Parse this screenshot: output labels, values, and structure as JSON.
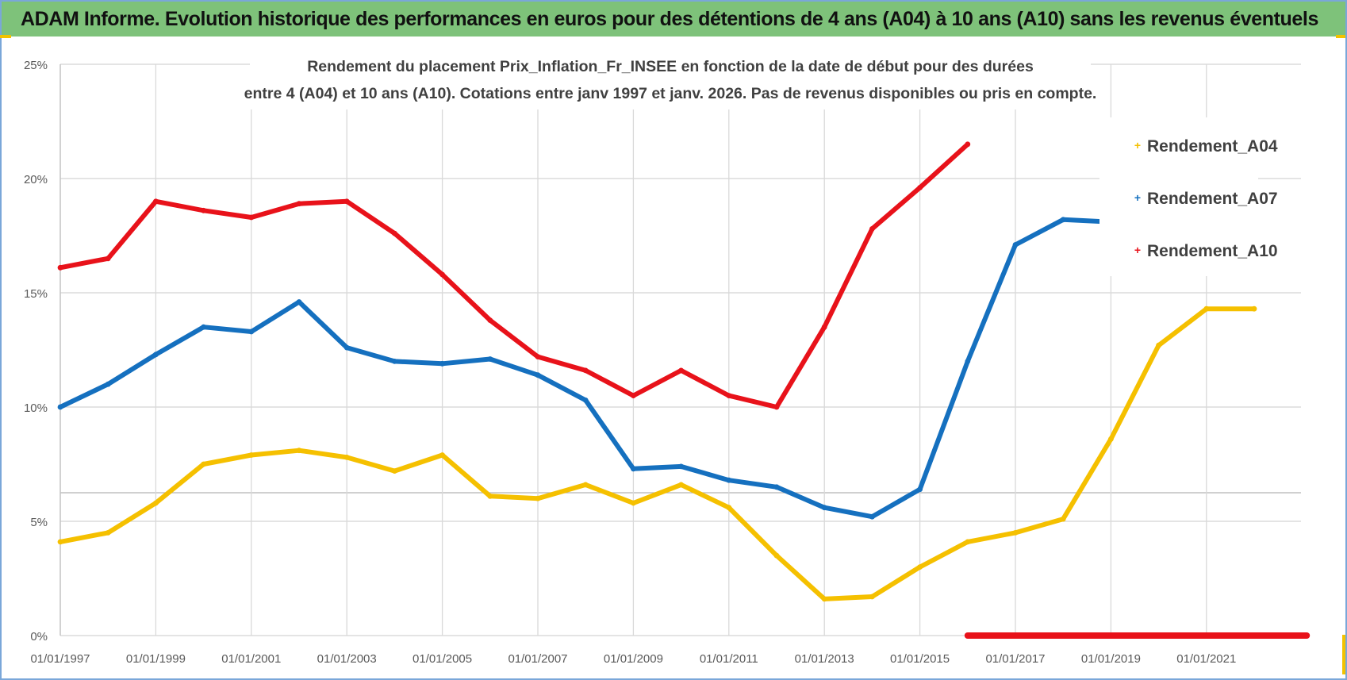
{
  "header": {
    "title": "ADAM Informe. Evolution historique des performances en euros pour des détentions de 4 ans (A04) à 10 ans (A10) sans les revenus éventuels"
  },
  "chart_data": {
    "type": "line",
    "title_lines": [
      "Rendement du placement Prix_Inflation_Fr_INSEE en fonction de la date de début pour des durées",
      "entre 4 (A04) et 10 ans (A10).  Cotations entre janv 1997 et janv. 2026. Pas de revenus disponibles ou pris en compte."
    ],
    "x_tick_labels": [
      "01/01/1997",
      "01/01/1999",
      "01/01/2001",
      "01/01/2003",
      "01/01/2005",
      "01/01/2007",
      "01/01/2009",
      "01/01/2011",
      "01/01/2013",
      "01/01/2015",
      "01/01/2017",
      "01/01/2019",
      "01/01/2021"
    ],
    "x_range": [
      1997,
      2023.1
    ],
    "y_tick_labels": [
      "0%",
      "5%",
      "10%",
      "15%",
      "20%",
      "25%"
    ],
    "y_ticks": [
      0,
      5,
      10,
      15,
      20,
      25
    ],
    "ylim": [
      0,
      25
    ],
    "ylabel_unit": "%",
    "legend_position": "right",
    "series": [
      {
        "name": "Rendement_A04",
        "color": "#f5c000",
        "points": [
          [
            1997,
            4.1
          ],
          [
            1998,
            4.5
          ],
          [
            1999,
            5.8
          ],
          [
            2000,
            7.5
          ],
          [
            2001,
            7.9
          ],
          [
            2002,
            8.1
          ],
          [
            2003,
            7.8
          ],
          [
            2004,
            7.2
          ],
          [
            2005,
            7.9
          ],
          [
            2006,
            6.1
          ],
          [
            2007,
            6.0
          ],
          [
            2008,
            6.6
          ],
          [
            2009,
            5.8
          ],
          [
            2010,
            6.6
          ],
          [
            2011,
            5.6
          ],
          [
            2012,
            3.5
          ],
          [
            2013,
            1.6
          ],
          [
            2014,
            1.7
          ],
          [
            2015,
            3.0
          ],
          [
            2016,
            4.1
          ],
          [
            2017,
            4.5
          ],
          [
            2018,
            5.1
          ],
          [
            2019,
            8.6
          ],
          [
            2020,
            12.7
          ],
          [
            2021,
            14.3
          ],
          [
            2022,
            14.3
          ]
        ]
      },
      {
        "name": "Rendement_A07",
        "color": "#1570bf",
        "points": [
          [
            1997,
            10.0
          ],
          [
            1998,
            11.0
          ],
          [
            1999,
            12.3
          ],
          [
            2000,
            13.5
          ],
          [
            2001,
            13.3
          ],
          [
            2002,
            14.6
          ],
          [
            2003,
            12.6
          ],
          [
            2004,
            12.0
          ],
          [
            2005,
            11.9
          ],
          [
            2006,
            12.1
          ],
          [
            2007,
            11.4
          ],
          [
            2008,
            10.3
          ],
          [
            2009,
            7.3
          ],
          [
            2010,
            7.4
          ],
          [
            2011,
            6.8
          ],
          [
            2012,
            6.5
          ],
          [
            2013,
            5.6
          ],
          [
            2014,
            5.2
          ],
          [
            2015,
            6.4
          ],
          [
            2016,
            12.0
          ],
          [
            2017,
            17.1
          ],
          [
            2018,
            18.2
          ],
          [
            2019,
            18.1
          ]
        ]
      },
      {
        "name": "Rendement_A10",
        "color": "#e8121a",
        "points": [
          [
            1997,
            16.1
          ],
          [
            1998,
            16.5
          ],
          [
            1999,
            19.0
          ],
          [
            2000,
            18.6
          ],
          [
            2001,
            18.3
          ],
          [
            2002,
            18.9
          ],
          [
            2003,
            19.0
          ],
          [
            2004,
            17.6
          ],
          [
            2005,
            15.8
          ],
          [
            2006,
            13.8
          ],
          [
            2007,
            12.2
          ],
          [
            2008,
            11.6
          ],
          [
            2009,
            10.5
          ],
          [
            2010,
            11.6
          ],
          [
            2011,
            10.5
          ],
          [
            2012,
            10.0
          ],
          [
            2013,
            13.5
          ],
          [
            2014,
            17.8
          ],
          [
            2015,
            19.6
          ],
          [
            2016,
            21.5
          ]
        ],
        "zero_tail": [
          2016,
          2023.1
        ]
      }
    ]
  }
}
